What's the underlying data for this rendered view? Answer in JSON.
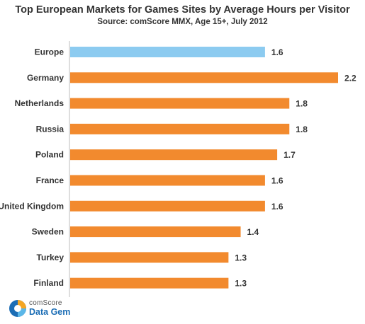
{
  "chart_data": {
    "type": "bar",
    "orientation": "horizontal",
    "title": "Top European Markets for Games Sites by Average Hours per Visitor",
    "subtitle": "Source: comScore MMX, Age 15+, July 2012",
    "categories": [
      "Europe",
      "Germany",
      "Netherlands",
      "Russia",
      "Poland",
      "France",
      "United Kingdom",
      "Sweden",
      "Turkey",
      "Finland"
    ],
    "values": [
      1.6,
      2.2,
      1.8,
      1.8,
      1.7,
      1.6,
      1.6,
      1.4,
      1.3,
      1.3
    ],
    "value_labels": [
      "1.6",
      "2.2",
      "1.8",
      "1.8",
      "1.7",
      "1.6",
      "1.6",
      "1.4",
      "1.3",
      "1.3"
    ],
    "xlim": [
      0,
      2.2
    ],
    "grid": false,
    "colors": {
      "highlight": "#8ccbf0",
      "default": "#f28a2e"
    },
    "highlight_category": "Europe"
  },
  "logo": {
    "brand": "comScore",
    "product": "Data Gem",
    "icon": "comscore-data-gem-icon"
  }
}
